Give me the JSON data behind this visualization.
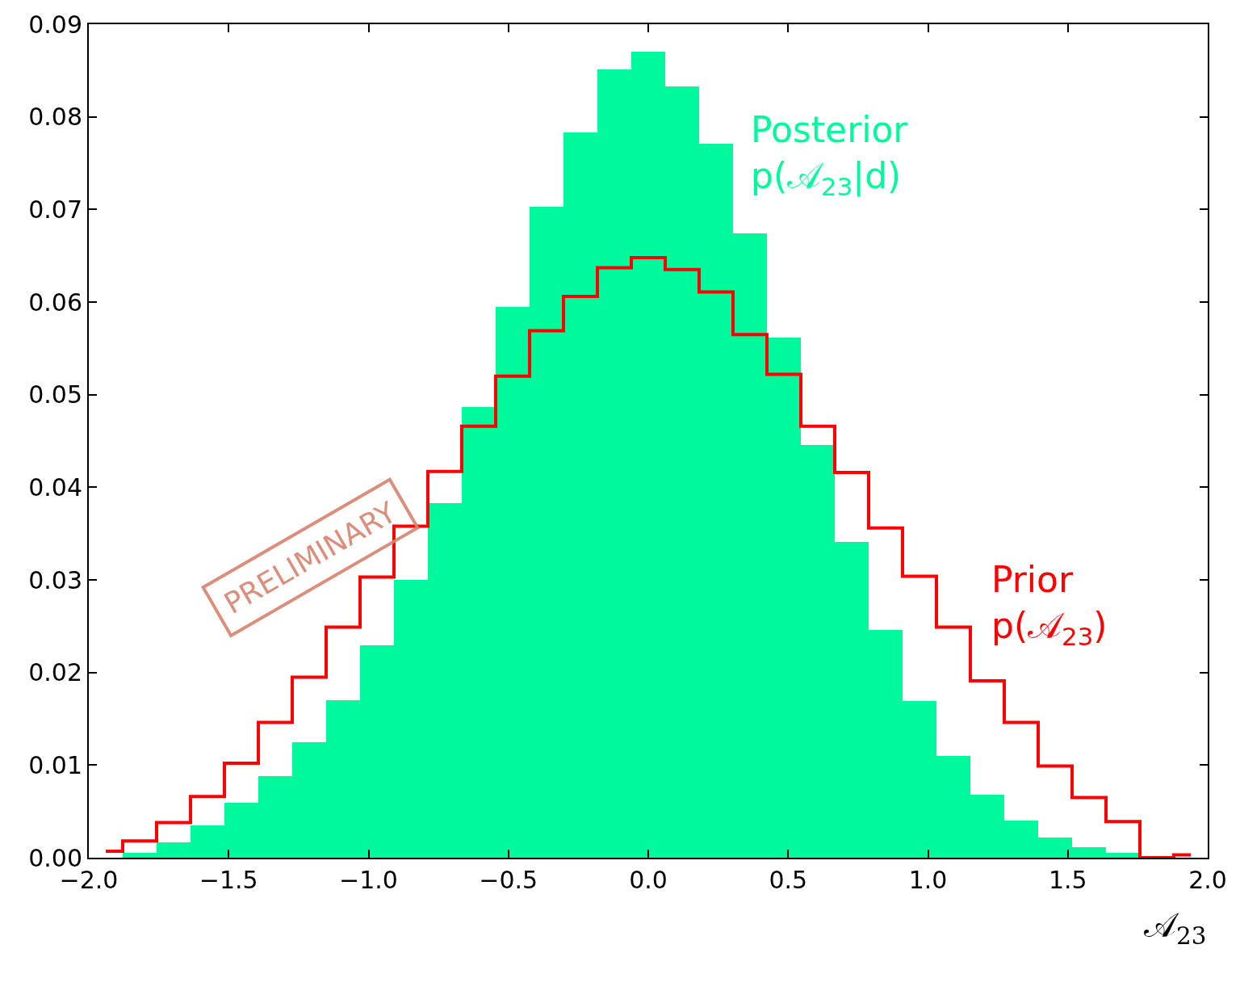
{
  "chart_data": {
    "type": "histogram",
    "xlabel": "𝒜$_{23}$",
    "bins": [
      -2.0,
      -1.8788,
      -1.7576,
      -1.6364,
      -1.5152,
      -1.3939,
      -1.2727,
      -1.1515,
      -1.0303,
      -0.9091,
      -0.7879,
      -0.6667,
      -0.5455,
      -0.4242,
      -0.303,
      -0.1818,
      -0.0606,
      0.0606,
      0.1818,
      0.303,
      0.4242,
      0.5455,
      0.6667,
      0.7879,
      0.9091,
      1.0303,
      1.1515,
      1.2727,
      1.3939,
      1.5152,
      1.6364,
      1.7576,
      1.8788,
      2.0
    ],
    "series": [
      {
        "name": "Posterior\np(𝒜$_{23}$|d)",
        "color": "#00f99a",
        "values": [
          0.0,
          0.0005,
          0.0017,
          0.0035,
          0.0059,
          0.0088,
          0.0125,
          0.017,
          0.0229,
          0.03,
          0.0383,
          0.0487,
          0.0595,
          0.0703,
          0.0783,
          0.0851,
          0.087,
          0.0833,
          0.0771,
          0.0674,
          0.0562,
          0.0446,
          0.0341,
          0.0246,
          0.0169,
          0.011,
          0.0068,
          0.004,
          0.0022,
          0.0011,
          0.0005,
          0.0,
          0.0
        ]
      },
      {
        "name": "Prior\np(𝒜$_{23}$)",
        "type": "step",
        "color": "#ff0000",
        "x": [
          -1.9394,
          -1.8182,
          -1.697,
          -1.5758,
          -1.4545,
          -1.3333,
          -1.2121,
          -1.0909,
          -0.9697,
          -0.8485,
          -0.7273,
          -0.6061,
          -0.4848,
          -0.3636,
          -0.2424,
          -0.1212,
          0.0,
          0.1212,
          0.2424,
          0.3636,
          0.4848,
          0.6061,
          0.7273,
          0.8485,
          0.9697,
          1.0909,
          1.2121,
          1.3333,
          1.4545,
          1.5758,
          1.697,
          1.8182,
          1.9394
        ],
        "values": [
          0.0007,
          0.0018,
          0.0038,
          0.0066,
          0.0102,
          0.0146,
          0.0195,
          0.0249,
          0.0303,
          0.0358,
          0.0417,
          0.0466,
          0.052,
          0.0569,
          0.0606,
          0.0637,
          0.0648,
          0.0635,
          0.0611,
          0.0565,
          0.0522,
          0.0466,
          0.0416,
          0.0356,
          0.0304,
          0.0249,
          0.0191,
          0.0146,
          0.0099,
          0.0065,
          0.0039,
          0.0,
          0.0003
        ]
      }
    ],
    "annotations": [
      "PRELIMINARY"
    ],
    "xlim": [
      -2.0,
      2.0
    ],
    "xticks": [
      {
        "value": -2.0,
        "label": "−2.0"
      },
      {
        "value": -1.5,
        "label": "−1.5"
      },
      {
        "value": -1.0,
        "label": "−1.0"
      },
      {
        "value": -0.5,
        "label": "−0.5"
      },
      {
        "value": 0.0,
        "label": "0.0"
      },
      {
        "value": 0.5,
        "label": "0.5"
      },
      {
        "value": 1.0,
        "label": "1.0"
      },
      {
        "value": 1.5,
        "label": "1.5"
      },
      {
        "value": 2.0,
        "label": "2.0"
      }
    ],
    "ylim": [
      0.0,
      0.09
    ],
    "yticks": [
      {
        "value": 0.0,
        "label": "0.00"
      },
      {
        "value": 0.01,
        "label": "0.01"
      },
      {
        "value": 0.02,
        "label": "0.02"
      },
      {
        "value": 0.03,
        "label": "0.03"
      },
      {
        "value": 0.04,
        "label": "0.04"
      },
      {
        "value": 0.05,
        "label": "0.05"
      },
      {
        "value": 0.06,
        "label": "0.06"
      },
      {
        "value": 0.07,
        "label": "0.07"
      },
      {
        "value": 0.08,
        "label": "0.08"
      },
      {
        "value": 0.09,
        "label": "0.09"
      }
    ],
    "ylabel": null
  }
}
